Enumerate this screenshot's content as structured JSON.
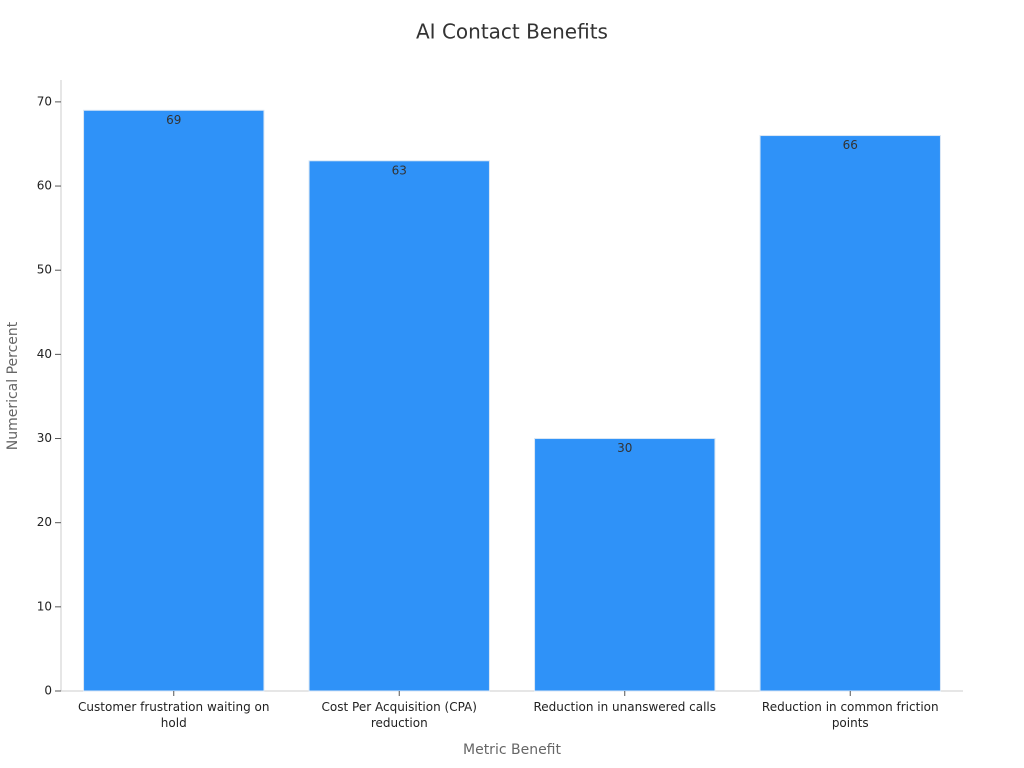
{
  "chart_data": {
    "type": "bar",
    "title": "AI Contact Benefits",
    "x_label": "Metric Benefit",
    "y_label": "Numerical Percent",
    "categories": [
      "Customer frustration waiting on hold",
      "Cost Per Acquisition (CPA) reduction",
      "Reduction in unanswered calls",
      "Reduction in common friction points"
    ],
    "values": [
      69,
      63,
      30,
      66
    ],
    "color": "#2f92f8",
    "ylim": [
      0,
      72.6
    ],
    "yticks": [
      0,
      10,
      20,
      30,
      40,
      50,
      60,
      70
    ],
    "grid": false
  }
}
